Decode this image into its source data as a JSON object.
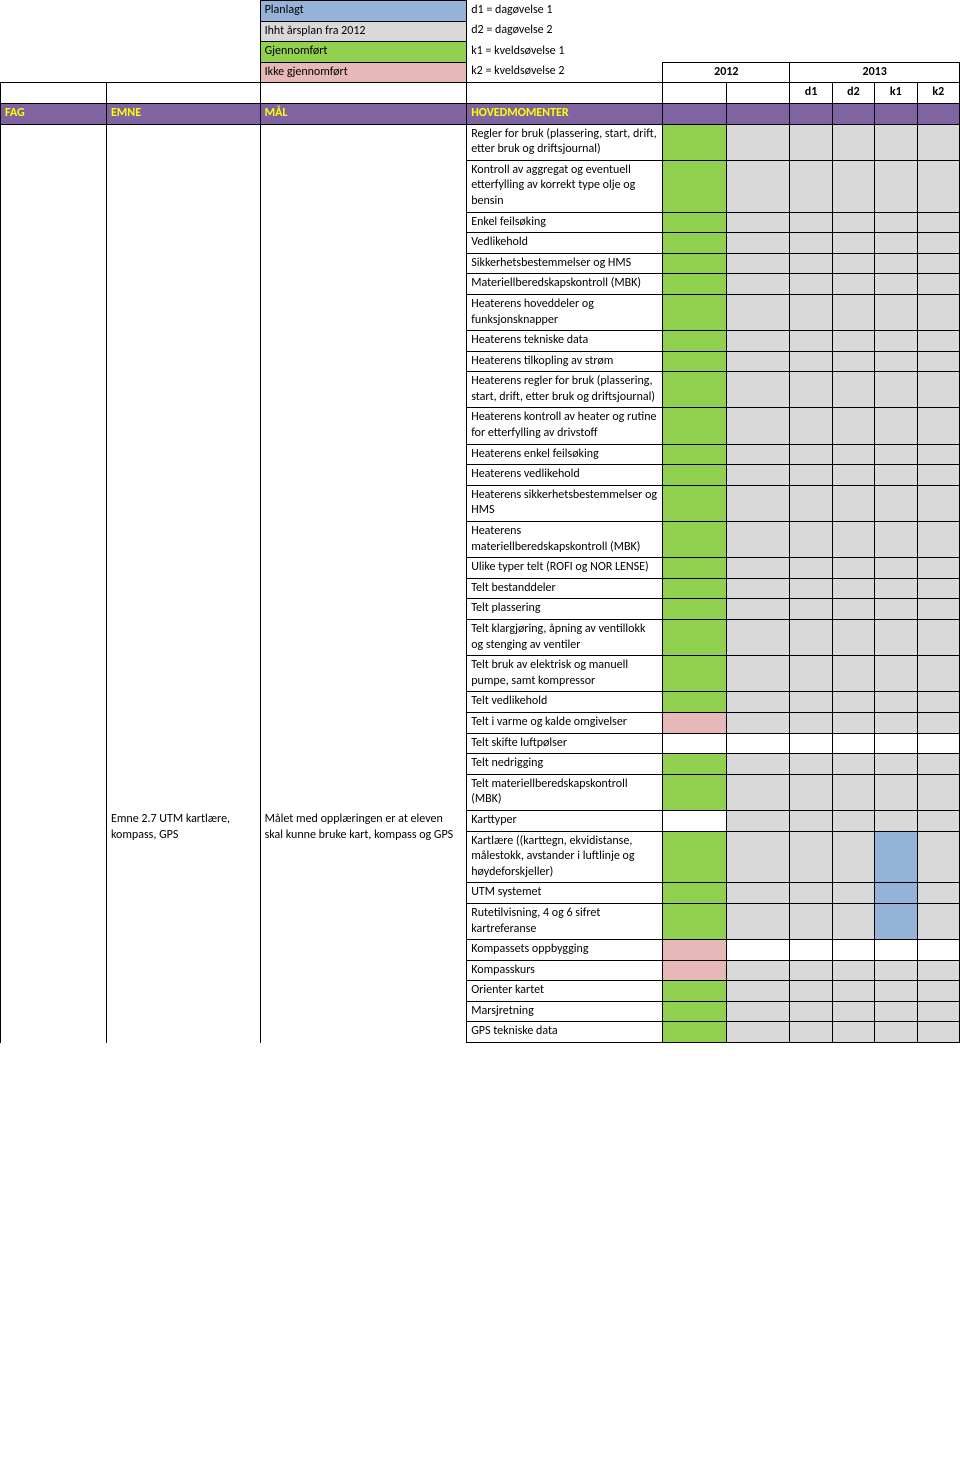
{
  "legend": {
    "planned": "Planlagt",
    "arsplan": "Ihht årsplan fra 2012",
    "done": "Gjennomført",
    "notdone": "Ikke gjennomført",
    "d1": "d1 = dagøvelse 1",
    "d2": "d2 = dagøvelse 2",
    "k1": "k1 = kveldsøvelse 1",
    "k2": "k2 = kveldsøvelse 2"
  },
  "years": {
    "y2012": "2012",
    "y2013": "2013"
  },
  "subcols": {
    "d1": "d1",
    "d2": "d2",
    "k1": "k1",
    "k2": "k2"
  },
  "headers": {
    "fag": "FAG",
    "emne": "EMNE",
    "mal": "MÅL",
    "hoved": "HOVEDMOMENTER"
  },
  "emne": {
    "title": "Emne 2.7 UTM kartlære, kompass, GPS",
    "mal": "Målet med opplæringen er at eleven skal kunne bruke kart, kompass og GPS"
  },
  "rows": [
    {
      "text": "Regler for bruk (plassering, start, drift, etter bruk og driftsjournal)",
      "c2012a": "green",
      "c2012b": "grey",
      "d1": "grey",
      "d2": "grey",
      "k1": "grey",
      "k2": "grey"
    },
    {
      "text": "Kontroll av aggregat og eventuell etterfylling av korrekt type olje og bensin",
      "c2012a": "green",
      "c2012b": "grey",
      "d1": "grey",
      "d2": "grey",
      "k1": "grey",
      "k2": "grey"
    },
    {
      "text": "Enkel feilsøking",
      "c2012a": "green",
      "c2012b": "grey",
      "d1": "grey",
      "d2": "grey",
      "k1": "grey",
      "k2": "grey"
    },
    {
      "text": "Vedlikehold",
      "c2012a": "green",
      "c2012b": "grey",
      "d1": "grey",
      "d2": "grey",
      "k1": "grey",
      "k2": "grey"
    },
    {
      "text": "Sikkerhetsbestemmelser og HMS",
      "c2012a": "green",
      "c2012b": "grey",
      "d1": "grey",
      "d2": "grey",
      "k1": "grey",
      "k2": "grey"
    },
    {
      "text": "Materiellberedskapskontroll (MBK)",
      "c2012a": "green",
      "c2012b": "grey",
      "d1": "grey",
      "d2": "grey",
      "k1": "grey",
      "k2": "grey"
    },
    {
      "text": "Heaterens hoveddeler og funksjonsknapper",
      "c2012a": "green",
      "c2012b": "grey",
      "d1": "grey",
      "d2": "grey",
      "k1": "grey",
      "k2": "grey"
    },
    {
      "text": "Heaterens tekniske data",
      "c2012a": "green",
      "c2012b": "grey",
      "d1": "grey",
      "d2": "grey",
      "k1": "grey",
      "k2": "grey"
    },
    {
      "text": "Heaterens tilkopling av strøm",
      "c2012a": "green",
      "c2012b": "grey",
      "d1": "grey",
      "d2": "grey",
      "k1": "grey",
      "k2": "grey"
    },
    {
      "text": "Heaterens regler for bruk (plassering, start, drift, etter bruk og driftsjournal)",
      "c2012a": "green",
      "c2012b": "grey",
      "d1": "grey",
      "d2": "grey",
      "k1": "grey",
      "k2": "grey"
    },
    {
      "text": "Heaterens kontroll av heater og rutine for etterfylling av drivstoff",
      "c2012a": "green",
      "c2012b": "grey",
      "d1": "grey",
      "d2": "grey",
      "k1": "grey",
      "k2": "grey"
    },
    {
      "text": "Heaterens enkel feilsøking",
      "c2012a": "green",
      "c2012b": "grey",
      "d1": "grey",
      "d2": "grey",
      "k1": "grey",
      "k2": "grey"
    },
    {
      "text": "Heaterens vedlikehold",
      "c2012a": "green",
      "c2012b": "grey",
      "d1": "grey",
      "d2": "grey",
      "k1": "grey",
      "k2": "grey"
    },
    {
      "text": "Heaterens sikkerhetsbestemmelser og HMS",
      "c2012a": "green",
      "c2012b": "grey",
      "d1": "grey",
      "d2": "grey",
      "k1": "grey",
      "k2": "grey"
    },
    {
      "text": "Heaterens materiellberedskapskontroll (MBK)",
      "c2012a": "green",
      "c2012b": "grey",
      "d1": "grey",
      "d2": "grey",
      "k1": "grey",
      "k2": "grey"
    },
    {
      "text": "Ulike typer telt (ROFI og NOR LENSE)",
      "c2012a": "green",
      "c2012b": "grey",
      "d1": "grey",
      "d2": "grey",
      "k1": "grey",
      "k2": "grey"
    },
    {
      "text": "Telt bestanddeler",
      "c2012a": "green",
      "c2012b": "grey",
      "d1": "grey",
      "d2": "grey",
      "k1": "grey",
      "k2": "grey"
    },
    {
      "text": "Telt plassering",
      "c2012a": "green",
      "c2012b": "grey",
      "d1": "grey",
      "d2": "grey",
      "k1": "grey",
      "k2": "grey"
    },
    {
      "text": "Telt klargjøring, åpning av ventillokk og stenging av ventiler",
      "c2012a": "green",
      "c2012b": "grey",
      "d1": "grey",
      "d2": "grey",
      "k1": "grey",
      "k2": "grey"
    },
    {
      "text": "Telt bruk av elektrisk og manuell pumpe, samt kompressor",
      "c2012a": "green",
      "c2012b": "grey",
      "d1": "grey",
      "d2": "grey",
      "k1": "grey",
      "k2": "grey"
    },
    {
      "text": "Telt vedlikehold",
      "c2012a": "green",
      "c2012b": "grey",
      "d1": "grey",
      "d2": "grey",
      "k1": "grey",
      "k2": "grey"
    },
    {
      "text": "Telt i varme og kalde omgivelser",
      "c2012a": "pink",
      "c2012b": "grey",
      "d1": "grey",
      "d2": "grey",
      "k1": "grey",
      "k2": "grey"
    },
    {
      "text": "Telt skifte luftpølser",
      "c2012a": "white",
      "c2012b": "white",
      "d1": "white",
      "d2": "white",
      "k1": "white",
      "k2": "white"
    },
    {
      "text": "Telt nedrigging",
      "c2012a": "green",
      "c2012b": "grey",
      "d1": "grey",
      "d2": "grey",
      "k1": "grey",
      "k2": "grey"
    },
    {
      "text": "Telt materiellberedskapskontroll (MBK)",
      "c2012a": "green",
      "c2012b": "grey",
      "d1": "grey",
      "d2": "grey",
      "k1": "grey",
      "k2": "grey"
    },
    {
      "text": "Karttyper",
      "c2012a": "white",
      "c2012b": "grey",
      "d1": "grey",
      "d2": "grey",
      "k1": "grey",
      "k2": "grey",
      "section": "emne27"
    },
    {
      "text": "Kartlære ((karttegn, ekvidistanse, målestokk, avstander i luftlinje og høydeforskjeller)",
      "c2012a": "green",
      "c2012b": "grey",
      "d1": "grey",
      "d2": "grey",
      "k1": "blue",
      "k2": "grey"
    },
    {
      "text": "UTM systemet",
      "c2012a": "green",
      "c2012b": "grey",
      "d1": "grey",
      "d2": "grey",
      "k1": "blue",
      "k2": "grey"
    },
    {
      "text": "Rutetilvisning, 4 og 6 sifret kartreferanse",
      "c2012a": "green",
      "c2012b": "grey",
      "d1": "grey",
      "d2": "grey",
      "k1": "blue",
      "k2": "grey"
    },
    {
      "text": "Kompassets oppbygging",
      "c2012a": "pink",
      "c2012b": "white",
      "d1": "white",
      "d2": "white",
      "k1": "white",
      "k2": "white"
    },
    {
      "text": "Kompasskurs",
      "c2012a": "pink",
      "c2012b": "grey",
      "d1": "grey",
      "d2": "grey",
      "k1": "grey",
      "k2": "grey"
    },
    {
      "text": "Orienter kartet",
      "c2012a": "green",
      "c2012b": "grey",
      "d1": "grey",
      "d2": "grey",
      "k1": "grey",
      "k2": "grey"
    },
    {
      "text": "Marsjretning",
      "c2012a": "green",
      "c2012b": "grey",
      "d1": "grey",
      "d2": "grey",
      "k1": "grey",
      "k2": "grey"
    },
    {
      "text": "GPS tekniske data",
      "c2012a": "green",
      "c2012b": "grey",
      "d1": "grey",
      "d2": "grey",
      "k1": "grey",
      "k2": "grey"
    }
  ]
}
